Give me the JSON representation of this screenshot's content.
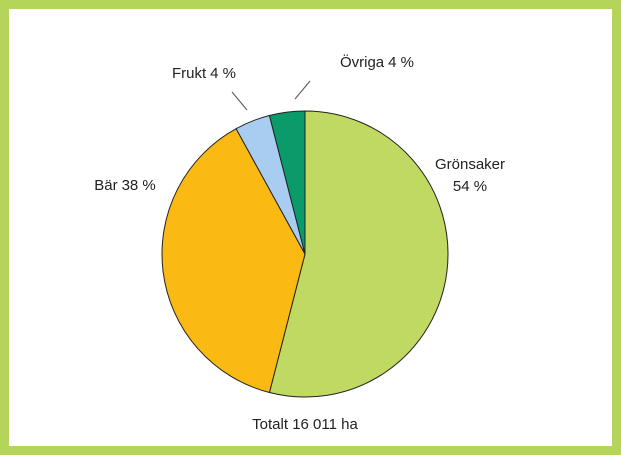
{
  "chart_data": {
    "type": "pie",
    "categories": [
      "Grönsaker",
      "Bär",
      "Frukt",
      "Övriga"
    ],
    "values": [
      54,
      38,
      4,
      4
    ],
    "value_labels": [
      "54 %",
      "38 %",
      "4 %",
      "4 %"
    ],
    "colors": [
      "#bfd962",
      "#fbb913",
      "#a9cdf0",
      "#0b9a6a"
    ],
    "note": "Totalt 16 011 ha"
  }
}
